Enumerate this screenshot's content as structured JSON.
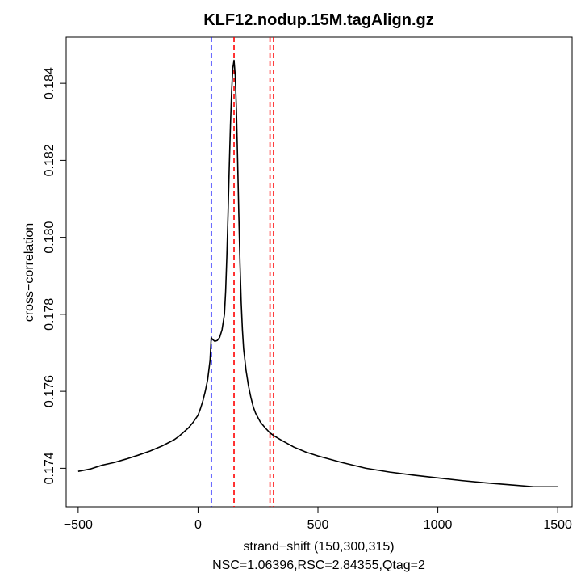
{
  "chart_data": {
    "type": "line",
    "title": "KLF12.nodup.15M.tagAlign.gz",
    "xlabel": "strand−shift (150,300,315)",
    "subtitle": "NSC=1.06396,RSC=2.84355,Qtag=2",
    "ylabel": "cross−correlation",
    "xlim": [
      -550,
      1560
    ],
    "ylim": [
      173.0,
      185.2
    ],
    "x_ticks": [
      -500,
      0,
      500,
      1000,
      1500
    ],
    "x_tick_labels": [
      "−500",
      "0",
      "500",
      "1000",
      "1500"
    ],
    "y_ticks": [
      174,
      176,
      178,
      180,
      182,
      184
    ],
    "y_tick_labels": [
      "0.174",
      "0.176",
      "0.178",
      "0.180",
      "0.182",
      "0.184"
    ],
    "y_scale_note": "values stored x1000 for readability",
    "grid": false,
    "vlines": [
      {
        "x": 55,
        "color": "#0000ff",
        "style": "dashed"
      },
      {
        "x": 150,
        "color": "#ff0000",
        "style": "dashed"
      },
      {
        "x": 300,
        "color": "#ff0000",
        "style": "dashed"
      },
      {
        "x": 315,
        "color": "#ff0000",
        "style": "dashed"
      }
    ],
    "series": [
      {
        "color": "#000000",
        "x": [
          -500,
          -450,
          -400,
          -350,
          -300,
          -250,
          -200,
          -150,
          -100,
          -80,
          -60,
          -40,
          -20,
          0,
          10,
          20,
          30,
          40,
          50,
          55,
          60,
          70,
          80,
          90,
          100,
          110,
          115,
          120,
          125,
          130,
          135,
          140,
          145,
          150,
          155,
          160,
          165,
          170,
          175,
          180,
          185,
          190,
          200,
          210,
          220,
          230,
          240,
          260,
          280,
          300,
          320,
          350,
          400,
          450,
          500,
          600,
          700,
          800,
          900,
          1000,
          1100,
          1200,
          1300,
          1400,
          1500
        ],
        "y": [
          173.92,
          173.98,
          174.08,
          174.15,
          174.24,
          174.34,
          174.45,
          174.58,
          174.74,
          174.83,
          174.94,
          175.05,
          175.2,
          175.38,
          175.55,
          175.75,
          176.0,
          176.3,
          176.8,
          177.4,
          177.35,
          177.3,
          177.32,
          177.4,
          177.6,
          178.0,
          178.6,
          179.5,
          180.6,
          181.8,
          182.9,
          183.8,
          184.4,
          184.6,
          184.2,
          183.3,
          182.0,
          180.6,
          179.3,
          178.3,
          177.6,
          177.1,
          176.55,
          176.15,
          175.85,
          175.6,
          175.43,
          175.2,
          175.05,
          174.92,
          174.83,
          174.72,
          174.55,
          174.42,
          174.32,
          174.15,
          174.0,
          173.9,
          173.82,
          173.75,
          173.68,
          173.62,
          173.57,
          173.52,
          173.52
        ]
      }
    ]
  }
}
